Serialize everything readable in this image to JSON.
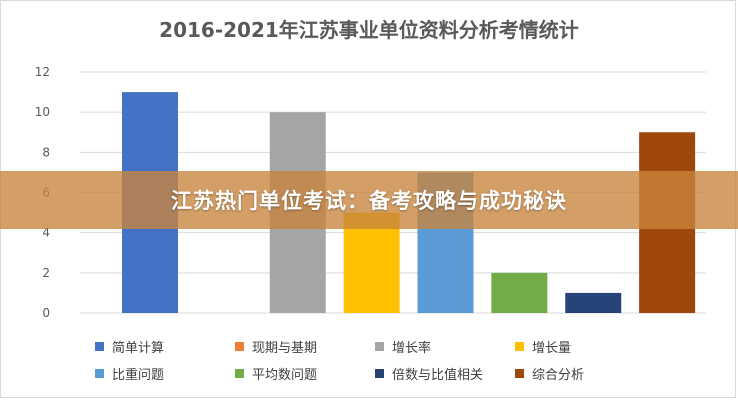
{
  "chart_data": {
    "type": "bar",
    "title": "2016-2021年江苏事业单位资料分析考情统计",
    "ylim": [
      0,
      12
    ],
    "yticks": [
      0,
      2,
      4,
      6,
      8,
      10,
      12
    ],
    "grid": true,
    "legend_placement": "bottom",
    "categories": [
      "简单计算",
      "现期与基期",
      "增长率",
      "增长量",
      "比重问题",
      "平均数问题",
      "倍数与比值相关",
      "综合分析"
    ],
    "values": [
      11,
      0,
      10,
      5,
      7,
      2,
      1,
      9
    ],
    "colors": [
      "#4472c4",
      "#ed7d31",
      "#a5a5a5",
      "#ffc000",
      "#5b9bd5",
      "#70ad47",
      "#264478",
      "#9e480e"
    ]
  },
  "banner": {
    "text": "江苏热门单位考试：备考攻略与成功秘诀"
  }
}
